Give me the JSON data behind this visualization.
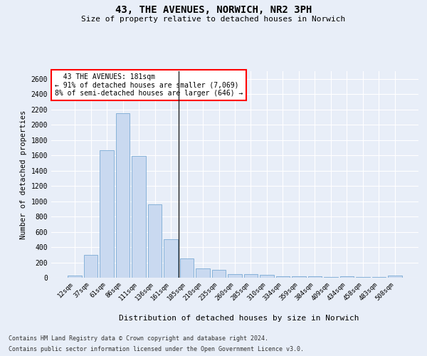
{
  "title1": "43, THE AVENUES, NORWICH, NR2 3PH",
  "title2": "Size of property relative to detached houses in Norwich",
  "xlabel": "Distribution of detached houses by size in Norwich",
  "ylabel": "Number of detached properties",
  "footer1": "Contains HM Land Registry data © Crown copyright and database right 2024.",
  "footer2": "Contains public sector information licensed under the Open Government Licence v3.0.",
  "annotation_line1": "  43 THE AVENUES: 181sqm",
  "annotation_line2": "← 91% of detached houses are smaller (7,069)",
  "annotation_line3": "8% of semi-detached houses are larger (646) →",
  "bar_color": "#c9d9f0",
  "bar_edge_color": "#7aaad4",
  "vline_color": "#222222",
  "categories": [
    "12sqm",
    "37sqm",
    "61sqm",
    "86sqm",
    "111sqm",
    "136sqm",
    "161sqm",
    "185sqm",
    "210sqm",
    "235sqm",
    "260sqm",
    "285sqm",
    "310sqm",
    "334sqm",
    "359sqm",
    "384sqm",
    "409sqm",
    "434sqm",
    "458sqm",
    "483sqm",
    "508sqm"
  ],
  "values": [
    25,
    300,
    1670,
    2150,
    1595,
    960,
    505,
    248,
    120,
    100,
    50,
    45,
    35,
    20,
    20,
    20,
    5,
    20,
    5,
    5,
    25
  ],
  "ylim": [
    0,
    2700
  ],
  "yticks": [
    0,
    200,
    400,
    600,
    800,
    1000,
    1200,
    1400,
    1600,
    1800,
    2000,
    2200,
    2400,
    2600
  ],
  "bg_color": "#e8eef8",
  "grid_color": "#ffffff",
  "annotation_box_color": "white",
  "annotation_box_edge": "red",
  "vline_bar_index": 7
}
